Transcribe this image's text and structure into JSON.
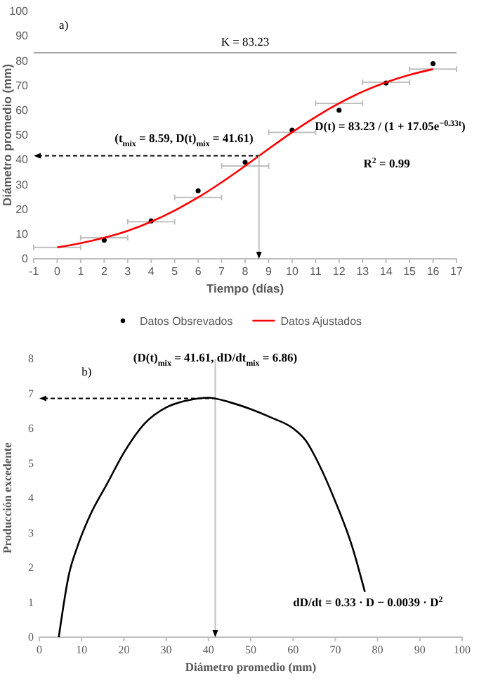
{
  "chart_data": [
    {
      "type": "scatter",
      "xlabel": "Tiempo (días)",
      "ylabel": "Diámetro promedio (mm)",
      "xlim": [
        -1,
        17
      ],
      "xticks": [
        -1,
        0,
        1,
        2,
        3,
        4,
        5,
        6,
        7,
        8,
        9,
        10,
        11,
        12,
        13,
        14,
        15,
        16,
        17
      ],
      "ylim": [
        0,
        100
      ],
      "yticks": [
        0,
        10,
        20,
        30,
        40,
        50,
        60,
        70,
        80,
        90,
        100
      ],
      "grid": false,
      "legend": "bottom",
      "series": [
        {
          "name": "Datos Obsrevados",
          "type": "scatter",
          "marker": "circle",
          "color": "#000000",
          "x": [
            2,
            4,
            6,
            8,
            10,
            12,
            14,
            16
          ],
          "values": [
            7.5,
            15.3,
            27.5,
            39,
            52,
            60,
            71,
            78.8
          ]
        },
        {
          "name": "Datos Ajustados",
          "type": "line",
          "marker": "none",
          "color": "#ff0000",
          "x": [
            0,
            1,
            2,
            3,
            4,
            5,
            6,
            7,
            8,
            9,
            10,
            11,
            12,
            13,
            14,
            15,
            16
          ],
          "values": [
            4.6,
            6.3,
            8.5,
            11.3,
            15.0,
            19.5,
            24.8,
            30.9,
            37.5,
            44.4,
            51.1,
            57.3,
            62.8,
            67.5,
            71.3,
            74.3,
            76.6
          ],
          "xerrors": [
            1,
            null,
            1,
            null,
            1,
            null,
            1,
            null,
            1,
            null,
            1,
            null,
            1,
            null,
            1,
            null,
            1
          ]
        }
      ],
      "ref_lines": [
        {
          "axis": "y",
          "value": 83.23,
          "label": "K = 83.23",
          "color": "#a6a6a6"
        }
      ],
      "annotations": [
        "a)",
        {
          "text": "(t$_{mix}$ = 8.59, D(t)$_{mix}$ = 41.61)",
          "x": 8.59,
          "y": 41.61
        },
        "D(t) = 83.23 / (1 + 17.05e$^{−0.33t}$)",
        "R$^{2}$ = 0.99"
      ]
    },
    {
      "type": "line",
      "xlabel": "Diámetro promedio (mm)",
      "ylabel": "Producción excedente",
      "xlim": [
        0,
        100
      ],
      "xticks": [
        0,
        10,
        20,
        30,
        40,
        50,
        60,
        70,
        80,
        90,
        100
      ],
      "ylim": [
        0,
        8
      ],
      "yticks": [
        0,
        1,
        2,
        3,
        4,
        5,
        6,
        7,
        8
      ],
      "grid": false,
      "legend": false,
      "marker": "none",
      "ref_lines": [
        {
          "axis": "x",
          "value": 41.61,
          "color": "#bfbfbf"
        }
      ],
      "series": [
        {
          "color": "#000000",
          "x": [
            4.6,
            7,
            9,
            12,
            16,
            20,
            25,
            30,
            35,
            40,
            45,
            50,
            55,
            60,
            63,
            66,
            70,
            74,
            77
          ],
          "values": [
            0,
            1.8,
            2.6,
            3.5,
            4.4,
            5.3,
            6.15,
            6.6,
            6.8,
            6.88,
            6.75,
            6.55,
            6.3,
            6.0,
            5.65,
            5.0,
            3.9,
            2.6,
            1.3
          ]
        }
      ],
      "annotations": [
        "b)",
        {
          "text": "(D(t)$_{mix}$ = 41.61, dD/dt$_{mix}$ = 6.86)",
          "x": 41.61,
          "y": 6.86
        },
        "dD/dt = 0.33 · D − 0.0039 · D$^{2}$"
      ]
    }
  ]
}
